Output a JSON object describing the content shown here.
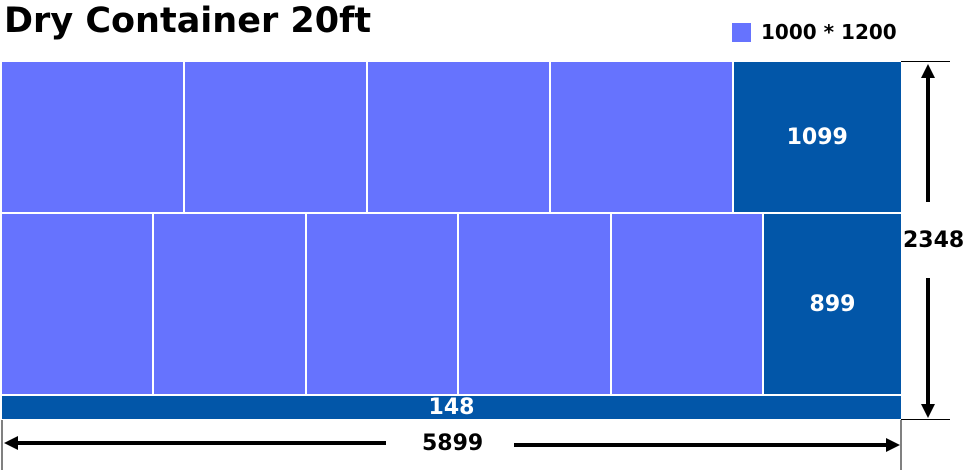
{
  "title": "Dry Container 20ft",
  "legend": {
    "label": "1000 * 1200",
    "color": "#6673fe"
  },
  "colors": {
    "pallet": "#6673fe",
    "gap": "#0256a8",
    "divider": "#ffffff",
    "dimension": "#000000"
  },
  "container": {
    "length": 5899,
    "width": 2348
  },
  "rows": [
    {
      "pallet_count": 4,
      "pallet_length": 1200,
      "row_depth": 1000,
      "gap_label": "1099"
    },
    {
      "pallet_count": 5,
      "pallet_length": 1000,
      "row_depth": 1200,
      "gap_label": "899"
    }
  ],
  "bottom_gap": {
    "label": "148"
  },
  "dimensions": {
    "length_label": "5899",
    "width_label": "2348"
  }
}
